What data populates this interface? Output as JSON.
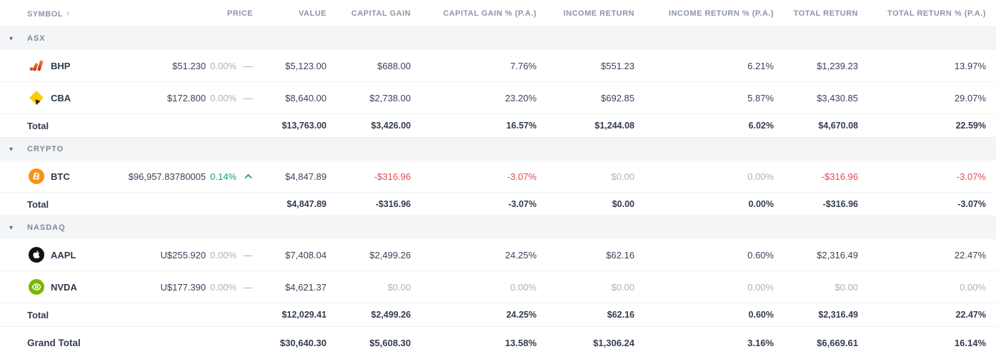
{
  "colors": {
    "positive": "#17A169",
    "negative": "#E9494F",
    "muted": "#A9B2C0",
    "text": "#39425A",
    "header_text": "#8C96A8",
    "group_bg": "#F4F5F7",
    "btc_orange": "#F7931A",
    "nvda_green": "#76B900",
    "cba_yellow": "#FFCC00"
  },
  "table": {
    "columns": [
      "SYMBOL",
      "PRICE",
      "VALUE",
      "CAPITAL GAIN",
      "CAPITAL GAIN % (P.A.)",
      "INCOME RETURN",
      "INCOME RETURN % (P.A.)",
      "TOTAL RETURN",
      "TOTAL RETURN % (P.A.)"
    ],
    "sort_column": "SYMBOL",
    "sort_direction": "ascending",
    "sort_arrow": "↑",
    "collapse_glyph": "▾"
  },
  "groups": [
    {
      "name": "ASX",
      "collapsed": false,
      "holdings": [
        {
          "symbol": "BHP",
          "icon": "bhp-logo",
          "price": "$51.230",
          "change": "0.00%",
          "change_tone": "muted",
          "change_indicator": "dash",
          "cells": [
            {
              "text": "$5,123.00",
              "tone": "normal"
            },
            {
              "text": "$688.00",
              "tone": "normal"
            },
            {
              "text": "7.76%",
              "tone": "normal"
            },
            {
              "text": "$551.23",
              "tone": "normal"
            },
            {
              "text": "6.21%",
              "tone": "normal"
            },
            {
              "text": "$1,239.23",
              "tone": "normal"
            },
            {
              "text": "13.97%",
              "tone": "normal"
            }
          ]
        },
        {
          "symbol": "CBA",
          "icon": "cba-logo",
          "price": "$172.800",
          "change": "0.00%",
          "change_tone": "muted",
          "change_indicator": "dash",
          "cells": [
            {
              "text": "$8,640.00",
              "tone": "normal"
            },
            {
              "text": "$2,738.00",
              "tone": "normal"
            },
            {
              "text": "23.20%",
              "tone": "normal"
            },
            {
              "text": "$692.85",
              "tone": "normal"
            },
            {
              "text": "5.87%",
              "tone": "normal"
            },
            {
              "text": "$3,430.85",
              "tone": "normal"
            },
            {
              "text": "29.07%",
              "tone": "normal"
            }
          ]
        }
      ],
      "total": {
        "label": "Total",
        "cells": [
          "$13,763.00",
          "$3,426.00",
          "16.57%",
          "$1,244.08",
          "6.02%",
          "$4,670.08",
          "22.59%"
        ]
      }
    },
    {
      "name": "CRYPTO",
      "collapsed": false,
      "holdings": [
        {
          "symbol": "BTC",
          "icon": "btc-logo",
          "price": "$96,957.83780005",
          "change": "0.14%",
          "change_tone": "positive",
          "change_indicator": "up",
          "cells": [
            {
              "text": "$4,847.89",
              "tone": "normal"
            },
            {
              "text": "-$316.96",
              "tone": "negative"
            },
            {
              "text": "-3.07%",
              "tone": "negative"
            },
            {
              "text": "$0.00",
              "tone": "muted"
            },
            {
              "text": "0.00%",
              "tone": "muted"
            },
            {
              "text": "-$316.96",
              "tone": "negative"
            },
            {
              "text": "-3.07%",
              "tone": "negative"
            }
          ]
        }
      ],
      "total": {
        "label": "Total",
        "cells": [
          "$4,847.89",
          "-$316.96",
          "-3.07%",
          "$0.00",
          "0.00%",
          "-$316.96",
          "-3.07%"
        ]
      }
    },
    {
      "name": "NASDAQ",
      "collapsed": false,
      "holdings": [
        {
          "symbol": "AAPL",
          "icon": "aapl-logo",
          "price": "U$255.920",
          "change": "0.00%",
          "change_tone": "muted",
          "change_indicator": "dash",
          "cells": [
            {
              "text": "$7,408.04",
              "tone": "normal"
            },
            {
              "text": "$2,499.26",
              "tone": "normal"
            },
            {
              "text": "24.25%",
              "tone": "normal"
            },
            {
              "text": "$62.16",
              "tone": "normal"
            },
            {
              "text": "0.60%",
              "tone": "normal"
            },
            {
              "text": "$2,316.49",
              "tone": "normal"
            },
            {
              "text": "22.47%",
              "tone": "normal"
            }
          ]
        },
        {
          "symbol": "NVDA",
          "icon": "nvda-logo",
          "price": "U$177.390",
          "change": "0.00%",
          "change_tone": "muted",
          "change_indicator": "dash",
          "cells": [
            {
              "text": "$4,621.37",
              "tone": "normal"
            },
            {
              "text": "$0.00",
              "tone": "muted"
            },
            {
              "text": "0.00%",
              "tone": "muted"
            },
            {
              "text": "$0.00",
              "tone": "muted"
            },
            {
              "text": "0.00%",
              "tone": "muted"
            },
            {
              "text": "$0.00",
              "tone": "muted"
            },
            {
              "text": "0.00%",
              "tone": "muted"
            }
          ]
        }
      ],
      "total": {
        "label": "Total",
        "cells": [
          "$12,029.41",
          "$2,499.26",
          "24.25%",
          "$62.16",
          "0.60%",
          "$2,316.49",
          "22.47%"
        ]
      }
    }
  ],
  "grand_total": {
    "label": "Grand Total",
    "cells": [
      "$30,640.30",
      "$5,608.30",
      "13.58%",
      "$1,306.24",
      "3.16%",
      "$6,669.61",
      "16.14%"
    ]
  }
}
